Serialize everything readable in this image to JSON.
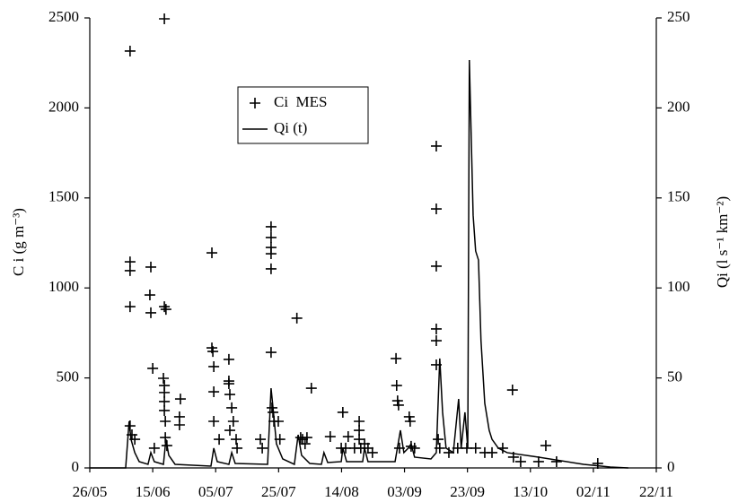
{
  "chart_data": {
    "type": "scatter-line",
    "ylabel": "C i (g m⁻³)",
    "y2label": "Qi  (l s⁻¹ km⁻²)",
    "xlim": [
      0,
      180
    ],
    "xticks": [
      {
        "value": 0,
        "label": "26/05"
      },
      {
        "value": 20,
        "label": "15/06"
      },
      {
        "value": 40,
        "label": "05/07"
      },
      {
        "value": 60,
        "label": "25/07"
      },
      {
        "value": 80,
        "label": "14/08"
      },
      {
        "value": 100,
        "label": "03/09"
      },
      {
        "value": 120,
        "label": "23/09"
      },
      {
        "value": 140,
        "label": "13/10"
      },
      {
        "value": 160,
        "label": "02/11"
      },
      {
        "value": 180,
        "label": "22/11"
      }
    ],
    "ylim": [
      0,
      2500
    ],
    "yticks": [
      0,
      500,
      1000,
      1500,
      2000,
      2500
    ],
    "y2lim": [
      0,
      250
    ],
    "y2ticks": [
      0,
      50,
      100,
      150,
      200,
      250
    ],
    "grid": false,
    "legend": "upper center",
    "series": [
      {
        "name": "Ci  MES",
        "type": "scatter",
        "color": "#000000",
        "x": [
          12.8,
          12.8,
          12.8,
          12.8,
          12.8,
          13.4,
          14.3,
          19.1,
          19.4,
          19.4,
          20.0,
          20.5,
          23.7,
          23.7,
          24.2,
          23.4,
          23.7,
          23.7,
          23.7,
          23.7,
          24.0,
          24.0,
          24.5,
          28.8,
          28.5,
          28.5,
          38.8,
          38.8,
          39.1,
          39.4,
          39.4,
          39.4,
          41.1,
          44.2,
          44.5,
          44.5,
          44.2,
          44.2,
          45.1,
          45.6,
          46.5,
          46.8,
          57.6,
          57.6,
          57.6,
          57.6,
          57.6,
          57.6,
          57.9,
          58.2,
          58.5,
          59.9,
          60.4,
          54.2,
          54.8,
          65.8,
          70.4,
          67.0,
          67.6,
          68.4,
          69.0,
          80.4,
          76.4,
          79.9,
          81.3,
          82.1,
          84.1,
          85.6,
          85.6,
          85.6,
          86.1,
          87.3,
          88.4,
          89.8,
          97.3,
          97.5,
          97.8,
          98.1,
          98.4,
          101.5,
          101.8,
          102.1,
          103.2,
          110.1,
          110.1,
          110.1,
          110.1,
          110.1,
          110.1,
          110.7,
          111.2,
          114.1,
          116.9,
          119.8,
          122.6,
          125.5,
          127.8,
          131.2,
          134.3,
          134.6,
          136.9,
          142.6,
          144.9,
          148.3,
          161.4
        ],
        "values": [
          2316,
          1145,
          1096,
          896,
          234,
          184,
          159,
          961,
          1116,
          862,
          553,
          110,
          2495,
          896,
          881,
          498,
          458,
          419,
          369,
          319,
          259,
          169,
          124,
          383,
          284,
          239,
          1195,
          667,
          647,
          563,
          423,
          259,
          159,
          603,
          408,
          209,
          483,
          468,
          334,
          259,
          159,
          110,
          1340,
          1280,
          1225,
          1190,
          1106,
          642,
          334,
          309,
          259,
          259,
          159,
          159,
          110,
          832,
          443,
          169,
          159,
          134,
          169,
          309,
          174,
          110,
          110,
          174,
          110,
          259,
          209,
          159,
          110,
          134,
          110,
          85,
          608,
          458,
          373,
          349,
          110,
          284,
          259,
          120,
          110,
          1788,
          1439,
          1121,
          772,
          707,
          573,
          159,
          110,
          85,
          110,
          110,
          110,
          85,
          85,
          110,
          433,
          60,
          35,
          35,
          124,
          35,
          25
        ]
      },
      {
        "name": "Qi (t)",
        "type": "line",
        "axis": "y2",
        "color": "#000000",
        "x": [
          0,
          11.4,
          12.5,
          13.1,
          14.3,
          15.7,
          18.5,
          19.4,
          20.5,
          23.4,
          24.2,
          25.1,
          27.1,
          38.5,
          39.4,
          40.5,
          44.2,
          45.1,
          46.2,
          56.5,
          57.6,
          58.5,
          59.3,
          61.3,
          65.0,
          66.2,
          67.3,
          69.9,
          73.6,
          74.4,
          75.6,
          79.9,
          80.4,
          81.6,
          86.7,
          87.3,
          88.4,
          97.0,
          98.7,
          99.8,
          101.2,
          102.1,
          103.2,
          108.4,
          110.1,
          111.2,
          112.1,
          113.2,
          115.5,
          117.2,
          118.0,
          119.2,
          120.1,
          120.6,
          121.8,
          122.6,
          123.5,
          124.3,
          125.5,
          126.9,
          127.8,
          129.8,
          132.6,
          142.6,
          156.9,
          165.4,
          171.1
        ],
        "values": [
          0,
          0,
          25.9,
          15.9,
          8.5,
          3.5,
          2.0,
          8.5,
          3.5,
          2.0,
          15.9,
          7.0,
          2.0,
          1.0,
          11.0,
          3.5,
          2.0,
          8.5,
          2.5,
          2.0,
          44.3,
          28.4,
          13.4,
          5.0,
          2.0,
          18.4,
          7.0,
          2.5,
          2.0,
          8.5,
          3.0,
          3.5,
          11.0,
          3.5,
          3.5,
          11.0,
          3.5,
          3.5,
          20.9,
          8.5,
          11.0,
          13.4,
          6.0,
          5.0,
          8.5,
          60.8,
          30.9,
          11.0,
          8.5,
          38.3,
          11.0,
          30.9,
          11.0,
          226.6,
          140.4,
          120.5,
          115.5,
          70.7,
          35.9,
          20.9,
          15.9,
          11.0,
          8.5,
          6.0,
          2.0,
          0.5,
          0
        ]
      }
    ]
  }
}
